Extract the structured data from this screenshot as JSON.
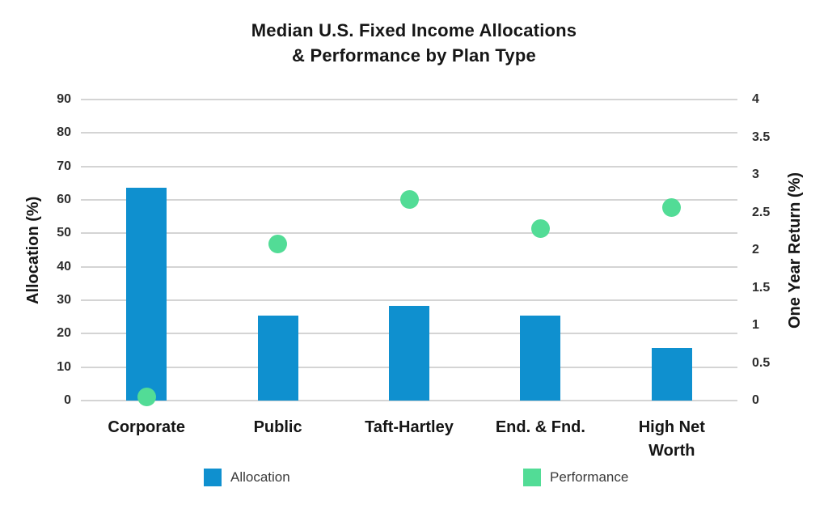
{
  "chart": {
    "title_line1": "Median U.S. Fixed Income Allocations",
    "title_line2": "& Performance by Plan Type",
    "left_axis_title": "Allocation (%)",
    "right_axis_title": "One Year Return (%)"
  },
  "chart_data": {
    "type": "combo-bar-scatter-dual-axis",
    "title": "Median U.S. Fixed Income Allocations & Performance by Plan Type",
    "categories": [
      "Corporate",
      "Public",
      "Taft-Hartley",
      "End. & Fnd.",
      "High Net Worth"
    ],
    "category_label_lines": [
      "Corporate",
      "Public",
      "Taft-Hartley",
      "End. & Fnd.",
      "High Net\nWorth"
    ],
    "series": [
      {
        "name": "Allocation",
        "type": "bar",
        "axis": "left",
        "color": "#0F90CF",
        "values": [
          63.6,
          25.3,
          28.4,
          25.3,
          15.7
        ]
      },
      {
        "name": "Performance",
        "type": "scatter",
        "axis": "right",
        "color": "#52DC96",
        "values": [
          0.05,
          2.08,
          2.67,
          2.28,
          2.56
        ]
      }
    ],
    "left_axis": {
      "label": "Allocation (%)",
      "ticks": [
        90,
        80,
        70,
        60,
        50,
        40,
        30,
        20,
        10,
        0
      ],
      "range": [
        0,
        90
      ]
    },
    "right_axis": {
      "label": "One Year Return (%)",
      "ticks": [
        4,
        3.5,
        3,
        2.5,
        2,
        1.5,
        1,
        0.5,
        0
      ],
      "range": [
        0,
        4
      ]
    },
    "grid": true,
    "legend_position": "bottom",
    "colors": {
      "bar": "#0F90CF",
      "dot": "#52DC96",
      "gridline": "#d4d4d4",
      "title_text": "#161616"
    }
  }
}
